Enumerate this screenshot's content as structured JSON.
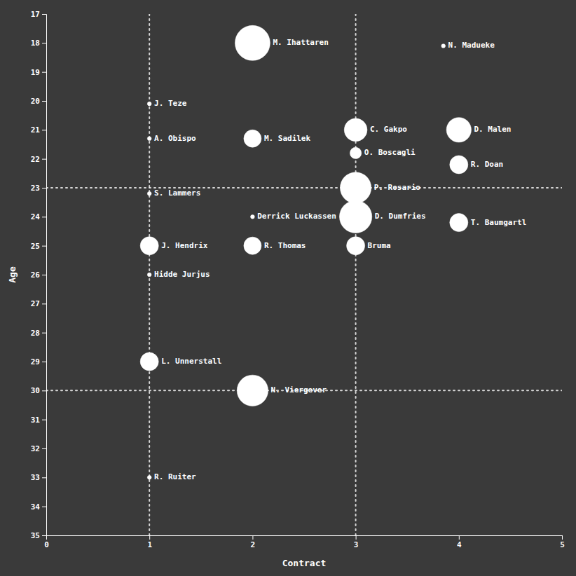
{
  "chart_data": {
    "type": "scatter",
    "xlabel": "Contract",
    "ylabel": "Age",
    "xlim": [
      0,
      5
    ],
    "ylim": [
      35,
      17
    ],
    "xticks": [
      0,
      1,
      2,
      3,
      4,
      5
    ],
    "yticks": [
      17,
      18,
      19,
      20,
      21,
      22,
      23,
      24,
      25,
      26,
      27,
      28,
      29,
      30,
      31,
      32,
      33,
      34,
      35
    ],
    "grid": false,
    "color": "#ffffff",
    "hlines": [
      23,
      30
    ],
    "vlines": [
      1,
      3
    ],
    "labels": [
      "M. Ihattaren",
      "N. Madueke",
      "J. Teze",
      "A. Obispo",
      "M. Sadilek",
      "C. Gakpo",
      "D. Malen",
      "O. Boscagli",
      "R. Doan",
      "P. Rosario",
      "S. Lammers",
      "D. Dumfries",
      "Derrick Luckassen",
      "T. Baumgartl",
      "R. Thomas",
      "J. Hendrix",
      "Bruma",
      "Hidde Jurjus",
      "L. Unnerstall",
      "N. Viergever",
      "R. Ruiter"
    ],
    "x": [
      2.0,
      3.85,
      1.0,
      1.0,
      2.0,
      3.0,
      4.0,
      3.0,
      4.0,
      3.0,
      1.0,
      3.0,
      2.0,
      4.0,
      2.0,
      1.0,
      3.0,
      1.0,
      1.0,
      2.0,
      1.0
    ],
    "y": [
      18.0,
      18.1,
      20.1,
      21.3,
      21.3,
      21.0,
      21.0,
      21.8,
      22.2,
      23.0,
      23.2,
      24.0,
      24.0,
      24.2,
      25.0,
      25.0,
      25.0,
      26.0,
      29.0,
      30.0,
      33.0
    ],
    "size": [
      1400,
      18,
      18,
      18,
      350,
      600,
      700,
      150,
      380,
      1100,
      18,
      1200,
      18,
      380,
      350,
      380,
      380,
      18,
      380,
      1100,
      18
    ]
  }
}
